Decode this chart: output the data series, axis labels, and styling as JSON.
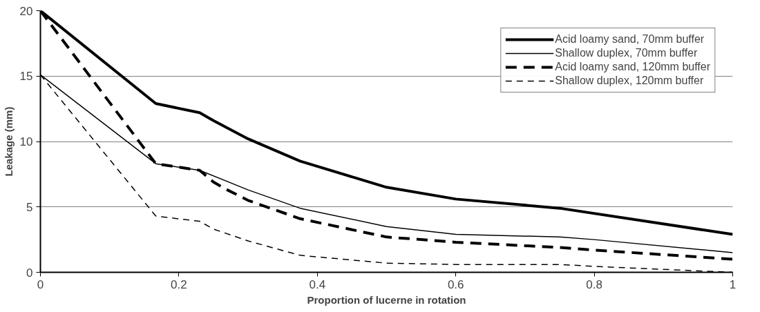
{
  "chart_data": {
    "type": "line",
    "xlabel": "Proportion of lucerne in rotation",
    "ylabel": "Leakage (mm)",
    "xlim": [
      0,
      1
    ],
    "xticks": [
      0,
      0.2,
      0.4,
      0.6,
      0.8,
      1
    ],
    "ylim": [
      0,
      20
    ],
    "yticks": [
      0,
      5,
      10,
      15,
      20
    ],
    "grid": "y",
    "legend": "top right",
    "marker": "none",
    "series": [
      {
        "name": "Acid loamy sand, 70mm buffer",
        "color": "#000000",
        "line_style": "solid",
        "x": [
          0,
          0.1667,
          0.23,
          0.25,
          0.3,
          0.375,
          0.5,
          0.6,
          0.75,
          1
        ],
        "values": [
          20,
          12.9,
          12.2,
          11.6,
          10.2,
          8.5,
          6.5,
          5.6,
          4.9,
          2.9
        ]
      },
      {
        "name": "Shallow duplex, 70mm buffer",
        "color": "#000000",
        "line_style": "solid",
        "x": [
          0,
          0.1667,
          0.23,
          0.3,
          0.375,
          0.5,
          0.6,
          0.75,
          0.8,
          1
        ],
        "values": [
          15.1,
          8.3,
          7.8,
          6.3,
          4.9,
          3.5,
          2.9,
          2.7,
          2.5,
          1.5
        ]
      },
      {
        "name": "Acid loamy sand, 120mm buffer",
        "color": "#000000",
        "line_style": "dashed",
        "x": [
          0,
          0.1667,
          0.23,
          0.25,
          0.27,
          0.3,
          0.375,
          0.5,
          0.6,
          0.75,
          0.8,
          1
        ],
        "values": [
          20,
          8.3,
          7.8,
          6.9,
          6.3,
          5.5,
          4.1,
          2.7,
          2.3,
          1.9,
          1.7,
          1.0
        ]
      },
      {
        "name": "Shallow duplex, 120mm buffer",
        "color": "#000000",
        "line_style": "dashed",
        "x": [
          0,
          0.1667,
          0.23,
          0.25,
          0.3,
          0.375,
          0.5,
          0.6,
          0.75,
          0.8,
          1
        ],
        "values": [
          15.1,
          4.3,
          3.9,
          3.3,
          2.4,
          1.3,
          0.7,
          0.6,
          0.6,
          0.45,
          0.0
        ]
      }
    ]
  }
}
